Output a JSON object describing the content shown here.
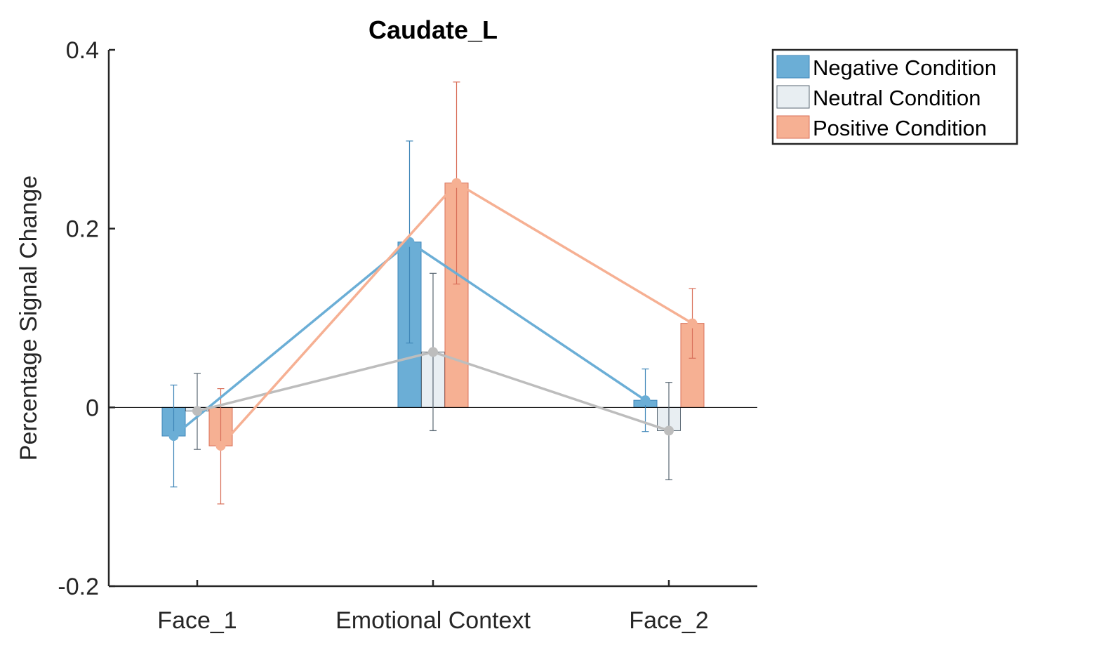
{
  "chart_data": {
    "type": "bar",
    "title": "Caudate_L",
    "xlabel": "",
    "ylabel": "Percentage Signal Change",
    "ylim": [
      -0.2,
      0.4
    ],
    "yticks": [
      -0.2,
      0,
      0.2,
      0.4
    ],
    "ytick_labels": [
      "-0.2",
      "0",
      "0.2",
      "0.4"
    ],
    "categories": [
      "Face_1",
      "Emotional Context",
      "Face_2"
    ],
    "grid": false,
    "legend_position": "outside-top-right",
    "overlay": "line connecting bar tops of each series, with circular markers",
    "series": [
      {
        "name": "Negative Condition",
        "fill": "#6baed6",
        "edge": "#3f86b8",
        "line": "#6baed6",
        "values": [
          -0.032,
          0.185,
          0.008
        ],
        "err_low": [
          -0.089,
          0.072,
          -0.027
        ],
        "err_high": [
          0.025,
          0.298,
          0.043
        ]
      },
      {
        "name": "Neutral Condition",
        "fill": "#e8eef2",
        "edge": "#596773",
        "line": "#bdbdbd",
        "values": [
          -0.004,
          0.062,
          -0.026
        ],
        "err_low": [
          -0.047,
          -0.026,
          -0.081
        ],
        "err_high": [
          0.038,
          0.15,
          0.028
        ]
      },
      {
        "name": "Positive Condition",
        "fill": "#f6b093",
        "edge": "#d9705a",
        "line": "#f6b093",
        "values": [
          -0.043,
          0.251,
          0.094
        ],
        "err_low": [
          -0.108,
          0.138,
          0.055
        ],
        "err_high": [
          0.021,
          0.364,
          0.133
        ]
      }
    ]
  }
}
